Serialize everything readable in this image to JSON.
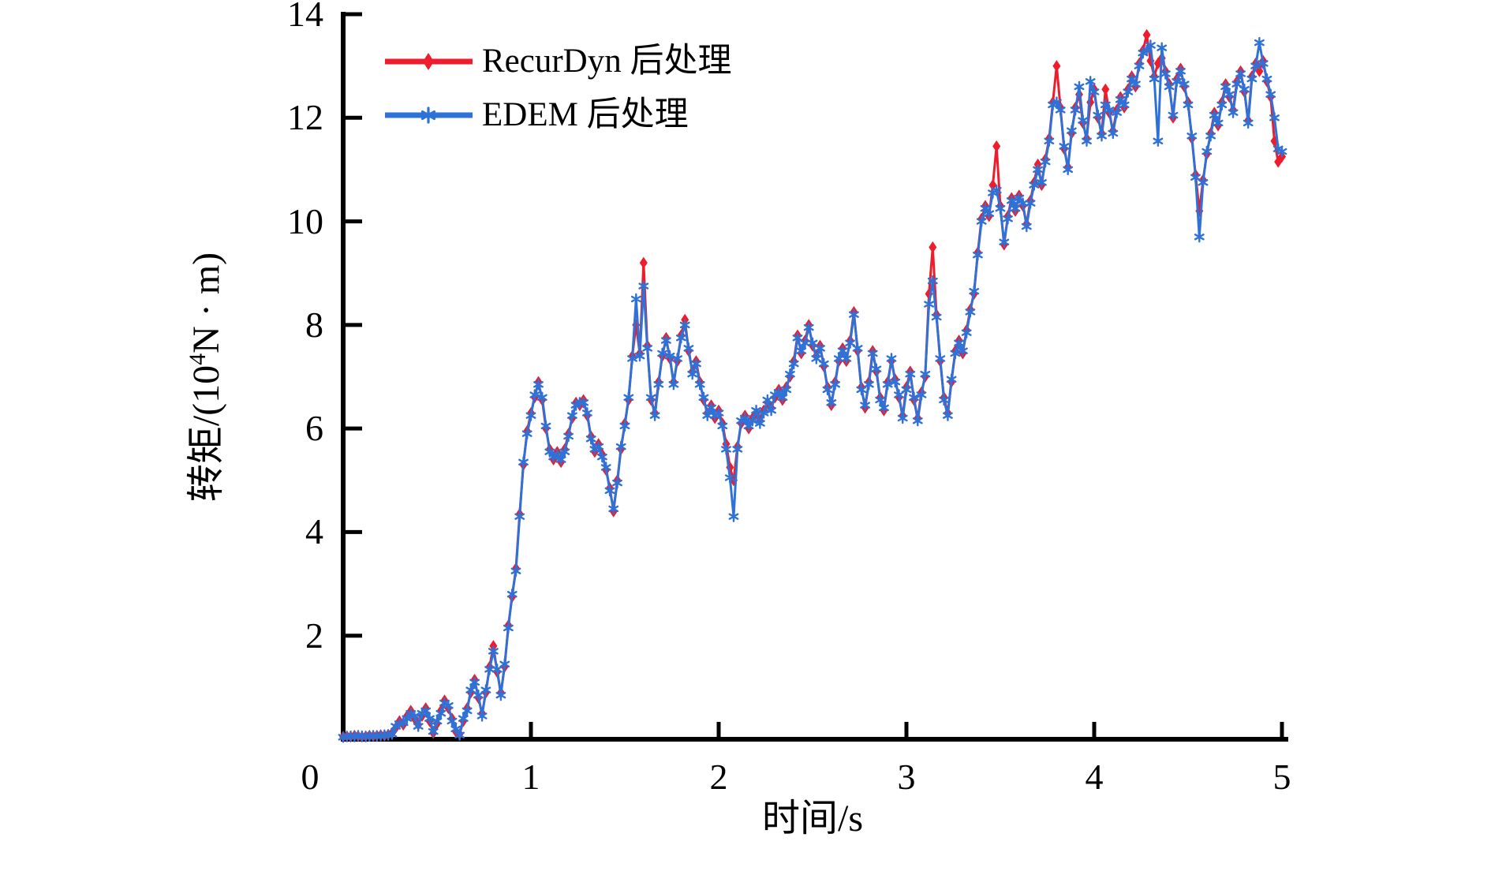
{
  "chart_data": {
    "type": "line",
    "title": "",
    "xlabel": "时间/s",
    "ylabel": "转矩/(10⁴N · m)",
    "ylabel_prefix": "转矩/(10",
    "ylabel_sup": "4",
    "ylabel_suffix": "N · m)",
    "xlim": [
      0,
      5
    ],
    "ylim": [
      0,
      14
    ],
    "xticks": [
      0,
      1,
      2,
      3,
      4,
      5
    ],
    "xtick_labels": [
      "0",
      "1",
      "2",
      "3",
      "4",
      "5"
    ],
    "yticks": [
      2,
      4,
      6,
      8,
      10,
      12,
      14
    ],
    "ytick_labels": [
      "2",
      "4",
      "6",
      "8",
      "10",
      "12",
      "14"
    ],
    "grid": false,
    "legend_position": "top-left-inside",
    "axis_color": "#000000",
    "x_start": 0,
    "x_step": 0.02,
    "series": [
      {
        "name": "RecurDyn 后处理",
        "color": "#ee1c2d",
        "marker": "diamond",
        "values": [
          0.05,
          0.06,
          0.05,
          0.07,
          0.06,
          0.05,
          0.06,
          0.07,
          0.06,
          0.07,
          0.08,
          0.07,
          0.09,
          0.12,
          0.22,
          0.35,
          0.28,
          0.45,
          0.55,
          0.4,
          0.28,
          0.45,
          0.6,
          0.35,
          0.12,
          0.3,
          0.55,
          0.75,
          0.6,
          0.4,
          0.15,
          0.1,
          0.35,
          0.6,
          0.9,
          1.15,
          0.8,
          0.5,
          0.9,
          1.4,
          1.8,
          1.3,
          0.9,
          1.4,
          2.2,
          2.75,
          3.3,
          4.35,
          5.3,
          5.95,
          6.3,
          6.6,
          6.9,
          6.55,
          6.0,
          5.6,
          5.4,
          5.55,
          5.35,
          5.6,
          5.9,
          6.2,
          6.5,
          6.45,
          6.55,
          6.25,
          5.85,
          5.55,
          5.7,
          5.5,
          5.2,
          4.85,
          4.4,
          5.0,
          5.6,
          6.1,
          6.55,
          7.4,
          8.0,
          7.45,
          9.2,
          7.6,
          6.55,
          6.3,
          6.9,
          7.4,
          7.75,
          7.35,
          6.9,
          7.3,
          7.8,
          8.1,
          7.5,
          7.1,
          7.3,
          6.9,
          6.55,
          6.3,
          6.45,
          6.2,
          6.35,
          6.1,
          5.7,
          5.25,
          5.0,
          5.65,
          6.1,
          6.25,
          6.0,
          6.2,
          6.3,
          6.15,
          6.35,
          6.5,
          6.4,
          6.6,
          6.75,
          6.55,
          6.8,
          7.0,
          7.3,
          7.8,
          7.45,
          7.7,
          8.0,
          7.6,
          7.4,
          7.6,
          7.2,
          6.8,
          6.45,
          6.9,
          7.3,
          7.55,
          7.3,
          7.7,
          8.25,
          7.5,
          6.8,
          6.4,
          6.9,
          7.5,
          7.1,
          6.6,
          6.35,
          6.9,
          7.3,
          6.95,
          6.6,
          6.25,
          6.8,
          7.1,
          6.55,
          6.2,
          6.7,
          7.0,
          8.6,
          9.5,
          8.2,
          7.3,
          6.6,
          6.3,
          6.9,
          7.5,
          7.7,
          7.45,
          7.9,
          8.3,
          8.6,
          9.4,
          10.05,
          10.3,
          10.1,
          10.7,
          11.45,
          10.3,
          9.55,
          10.1,
          10.45,
          10.2,
          10.5,
          10.3,
          9.95,
          10.4,
          10.75,
          11.1,
          10.7,
          11.2,
          11.6,
          12.3,
          13.0,
          12.2,
          11.4,
          11.05,
          11.7,
          12.2,
          12.45,
          11.9,
          11.6,
          12.3,
          12.55,
          12.0,
          11.7,
          12.55,
          12.1,
          11.75,
          12.15,
          12.4,
          12.2,
          12.55,
          12.8,
          12.6,
          13.05,
          13.3,
          13.6,
          13.1,
          12.8,
          13.05,
          13.15,
          12.9,
          12.65,
          12.0,
          12.75,
          12.95,
          12.6,
          12.3,
          11.6,
          10.9,
          10.2,
          10.8,
          11.3,
          11.7,
          12.1,
          11.85,
          12.3,
          12.65,
          12.4,
          12.15,
          12.7,
          12.9,
          12.5,
          11.95,
          12.8,
          13.05,
          12.9,
          13.1,
          12.7,
          12.4,
          11.55,
          11.15,
          11.25
        ]
      },
      {
        "name": "EDEM 后处理",
        "color": "#2e72d8",
        "marker": "star",
        "values": [
          0.04,
          0.05,
          0.06,
          0.05,
          0.07,
          0.06,
          0.05,
          0.06,
          0.07,
          0.06,
          0.07,
          0.08,
          0.08,
          0.1,
          0.25,
          0.3,
          0.32,
          0.4,
          0.5,
          0.45,
          0.25,
          0.5,
          0.55,
          0.4,
          0.15,
          0.35,
          0.5,
          0.7,
          0.65,
          0.35,
          0.2,
          0.08,
          0.4,
          0.55,
          0.95,
          1.1,
          0.85,
          0.45,
          0.95,
          1.35,
          1.7,
          1.35,
          0.85,
          1.45,
          2.15,
          2.8,
          3.25,
          4.3,
          5.35,
          5.9,
          6.25,
          6.65,
          6.85,
          6.6,
          6.05,
          5.55,
          5.45,
          5.5,
          5.4,
          5.55,
          5.85,
          6.25,
          6.45,
          6.5,
          6.5,
          6.3,
          5.8,
          5.6,
          5.65,
          5.45,
          5.25,
          4.8,
          4.45,
          4.95,
          5.65,
          6.05,
          6.6,
          7.35,
          8.5,
          7.4,
          8.75,
          7.55,
          6.6,
          6.25,
          6.85,
          7.45,
          7.7,
          7.4,
          6.85,
          7.35,
          7.75,
          8.0,
          7.55,
          7.05,
          7.25,
          6.85,
          6.6,
          6.25,
          6.4,
          6.25,
          6.3,
          6.05,
          5.6,
          5.05,
          4.3,
          5.6,
          6.15,
          6.2,
          6.05,
          6.15,
          6.35,
          6.1,
          6.3,
          6.55,
          6.35,
          6.65,
          6.7,
          6.6,
          6.75,
          7.05,
          7.25,
          7.75,
          7.5,
          7.65,
          7.95,
          7.65,
          7.35,
          7.55,
          7.25,
          6.75,
          6.5,
          6.85,
          7.35,
          7.5,
          7.35,
          7.65,
          8.2,
          7.55,
          6.75,
          6.45,
          6.85,
          7.45,
          7.15,
          6.55,
          6.4,
          6.85,
          7.35,
          6.9,
          6.65,
          6.2,
          6.75,
          7.05,
          6.6,
          6.15,
          6.65,
          7.05,
          8.4,
          8.85,
          8.15,
          7.35,
          6.55,
          6.25,
          6.95,
          7.45,
          7.65,
          7.5,
          7.85,
          8.25,
          8.65,
          9.35,
          10.0,
          10.25,
          10.15,
          10.55,
          10.6,
          10.25,
          9.6,
          10.05,
          10.4,
          10.25,
          10.45,
          10.35,
          9.9,
          10.35,
          10.7,
          11.0,
          10.75,
          11.15,
          11.55,
          12.25,
          12.3,
          12.15,
          11.45,
          11.0,
          11.75,
          12.15,
          12.6,
          11.95,
          11.55,
          12.7,
          12.5,
          12.05,
          11.65,
          12.25,
          12.15,
          11.7,
          12.1,
          12.35,
          12.25,
          12.5,
          12.75,
          12.65,
          13.0,
          13.25,
          13.3,
          13.4,
          12.75,
          11.55,
          13.35,
          12.85,
          12.6,
          12.05,
          12.7,
          12.9,
          12.65,
          12.25,
          11.65,
          10.85,
          9.7,
          10.75,
          11.35,
          11.65,
          12.05,
          11.9,
          12.25,
          12.6,
          12.45,
          12.1,
          12.65,
          12.85,
          12.55,
          11.9,
          12.75,
          13.0,
          13.45,
          13.05,
          12.75,
          12.45,
          12.0,
          11.4,
          11.35
        ]
      }
    ]
  }
}
